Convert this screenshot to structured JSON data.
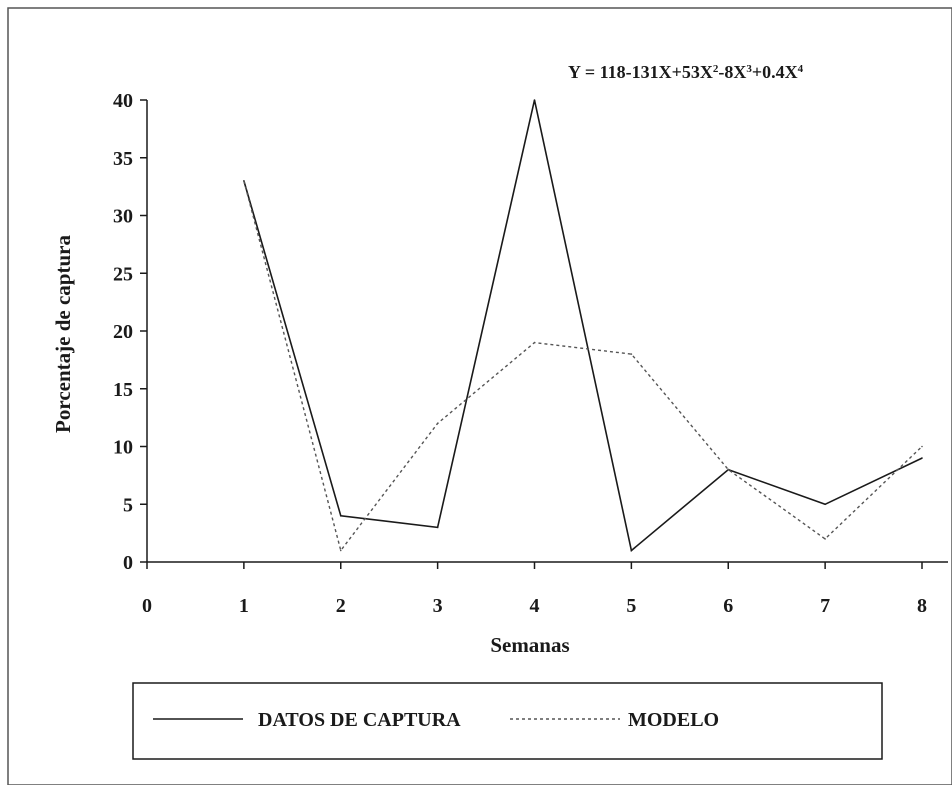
{
  "chart_data": {
    "type": "line",
    "title": "",
    "equation": {
      "prefix": "Y = 118-131X+53X",
      "sup1": "2",
      "mid1": "-8X",
      "sup2": "3",
      "mid2": "+0.4X",
      "sup3": "4"
    },
    "xlabel": "Semanas",
    "ylabel": "Porcentaje de captura",
    "xlim": [
      0,
      8
    ],
    "ylim": [
      0,
      40
    ],
    "x_ticks": [
      "0",
      "1",
      "2",
      "3",
      "4",
      "5",
      "6",
      "7",
      "8"
    ],
    "y_ticks": [
      "0",
      "5",
      "10",
      "15",
      "20",
      "25",
      "30",
      "35",
      "40"
    ],
    "grid": false,
    "legend_placement": "bottom",
    "series": [
      {
        "name": "DATOS DE CAPTURA",
        "style": "solid",
        "color": "#1a1a1a",
        "x": [
          1,
          2,
          3,
          4,
          5,
          6,
          7,
          8
        ],
        "values": [
          33,
          4,
          3,
          40,
          1,
          8,
          5,
          9
        ]
      },
      {
        "name": "MODELO",
        "style": "dotted",
        "color": "#555555",
        "x": [
          1,
          2,
          3,
          4,
          5,
          6,
          7,
          8
        ],
        "values": [
          33,
          1,
          12,
          19,
          18,
          8,
          2,
          10
        ]
      }
    ]
  }
}
